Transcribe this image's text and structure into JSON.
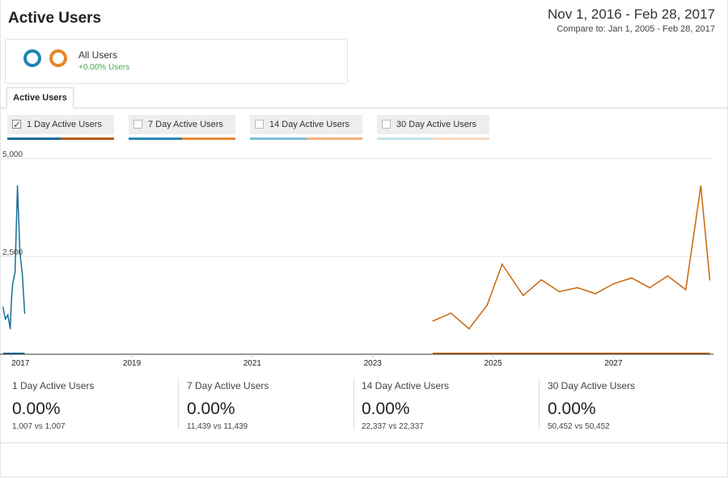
{
  "header": {
    "title": "Active Users",
    "date_range": "Nov 1, 2016 - Feb 28, 2017",
    "compare": "Compare to: Jan 1, 2005 - Feb 28, 2017"
  },
  "segment": {
    "name": "All Users",
    "change": "+0.00% Users"
  },
  "tabs": [
    {
      "label": "Active Users"
    }
  ],
  "metrics": [
    {
      "label": "1 Day Active Users",
      "checked": true,
      "colors": [
        "#1a6e97",
        "#b45c14"
      ]
    },
    {
      "label": "7 Day Active Users",
      "checked": false,
      "colors": [
        "#2a8ab5",
        "#e58a32"
      ]
    },
    {
      "label": "14 Day Active Users",
      "checked": false,
      "colors": [
        "#7dbfd8",
        "#f1b07c"
      ]
    },
    {
      "label": "30 Day Active Users",
      "checked": false,
      "colors": [
        "#c8e2ee",
        "#f7d9c0"
      ]
    }
  ],
  "chart_data": {
    "type": "line",
    "y_ticks": [
      "5,000",
      "2,500"
    ],
    "ylim": [
      0,
      5000
    ],
    "x_ticks": [
      "2017",
      "2019",
      "2021",
      "2023",
      "2025",
      "2027"
    ],
    "grid": true,
    "series": [
      {
        "color": "#1a6e97",
        "x": [
          2016.86,
          2016.9,
          2016.94,
          2016.98,
          2017.0,
          2017.02,
          2017.06,
          2017.1,
          2017.14,
          2017.18,
          2017.22
        ],
        "values": [
          1200,
          900,
          1000,
          650,
          1400,
          1800,
          2100,
          4300,
          2600,
          2050,
          1050
        ]
      },
      {
        "color": "#c8670f",
        "x": [
          2024.0,
          2024.3,
          2024.6,
          2024.9,
          2025.15,
          2025.5,
          2025.8,
          2026.1,
          2026.4,
          2026.7,
          2027.0,
          2027.3,
          2027.6,
          2027.9,
          2028.2,
          2028.45,
          2028.6
        ],
        "values": [
          850,
          1050,
          650,
          1250,
          2300,
          1500,
          1900,
          1600,
          1700,
          1550,
          1800,
          1950,
          1700,
          2000,
          1650,
          4300,
          1900
        ]
      }
    ]
  },
  "stats": [
    {
      "name": "1 Day Active Users",
      "pct": "0.00%",
      "vs": "1,007 vs 1,007"
    },
    {
      "name": "7 Day Active Users",
      "pct": "0.00%",
      "vs": "11,439 vs 11,439"
    },
    {
      "name": "14 Day Active Users",
      "pct": "0.00%",
      "vs": "22,337 vs 22,337"
    },
    {
      "name": "30 Day Active Users",
      "pct": "0.00%",
      "vs": "50,452 vs 50,452"
    }
  ]
}
